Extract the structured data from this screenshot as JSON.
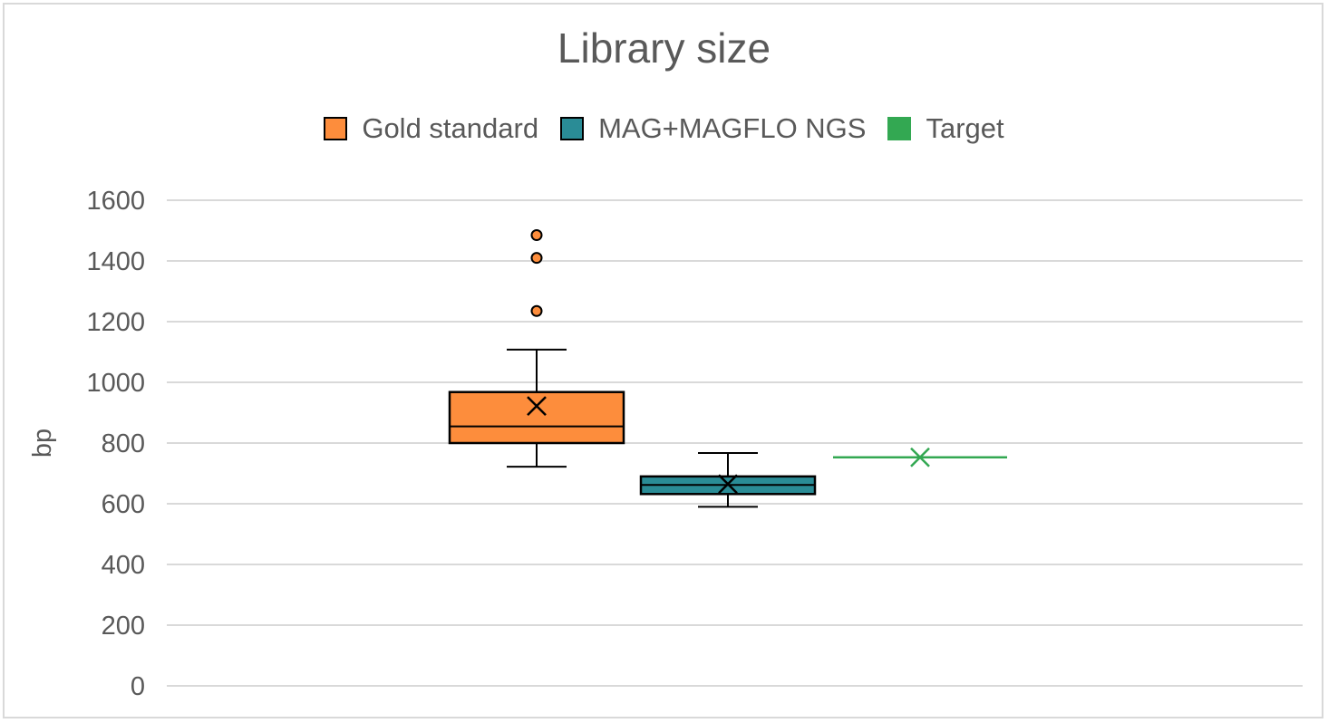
{
  "chart_data": {
    "type": "box",
    "title": "Library size",
    "ylabel": "bp",
    "xlabel": "",
    "ylim": [
      0,
      1600
    ],
    "yticks": [
      0,
      200,
      400,
      600,
      800,
      1000,
      1200,
      1400,
      1600
    ],
    "grid": true,
    "legend_position": "top",
    "series": [
      {
        "name": "Gold standard",
        "color": "#fd8d3c",
        "kind": "box",
        "min": 722,
        "q1": 800,
        "median": 855,
        "q3": 968,
        "max": 1108,
        "mean": 922,
        "outliers": [
          1235,
          1410,
          1485
        ]
      },
      {
        "name": "MAG+MAGFLO NGS",
        "color": "#2a8c96",
        "kind": "box",
        "min": 590,
        "q1": 632,
        "median": 662,
        "q3": 690,
        "max": 767,
        "mean": 665,
        "outliers": []
      },
      {
        "name": "Target",
        "color": "#33a852",
        "kind": "target",
        "value": 753,
        "mean": 753
      }
    ]
  }
}
